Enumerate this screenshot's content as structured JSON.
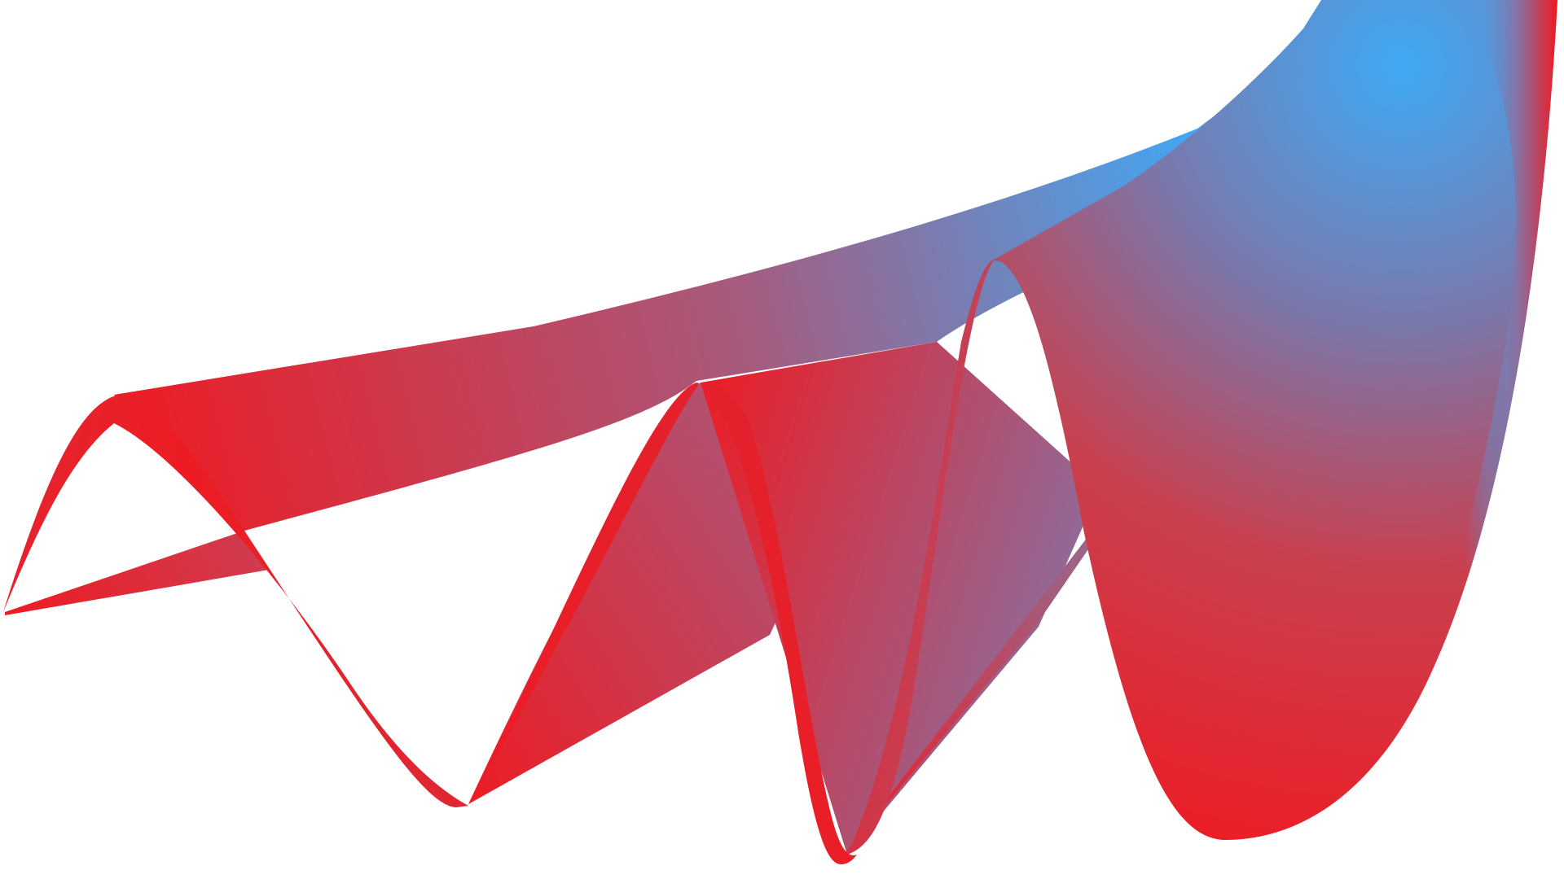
{
  "artwork": {
    "description_icon": "wave-ribbon-graphic",
    "colors": {
      "red": "#ed1c24",
      "blue": "#3fa9f5",
      "background": "#ffffff"
    }
  }
}
